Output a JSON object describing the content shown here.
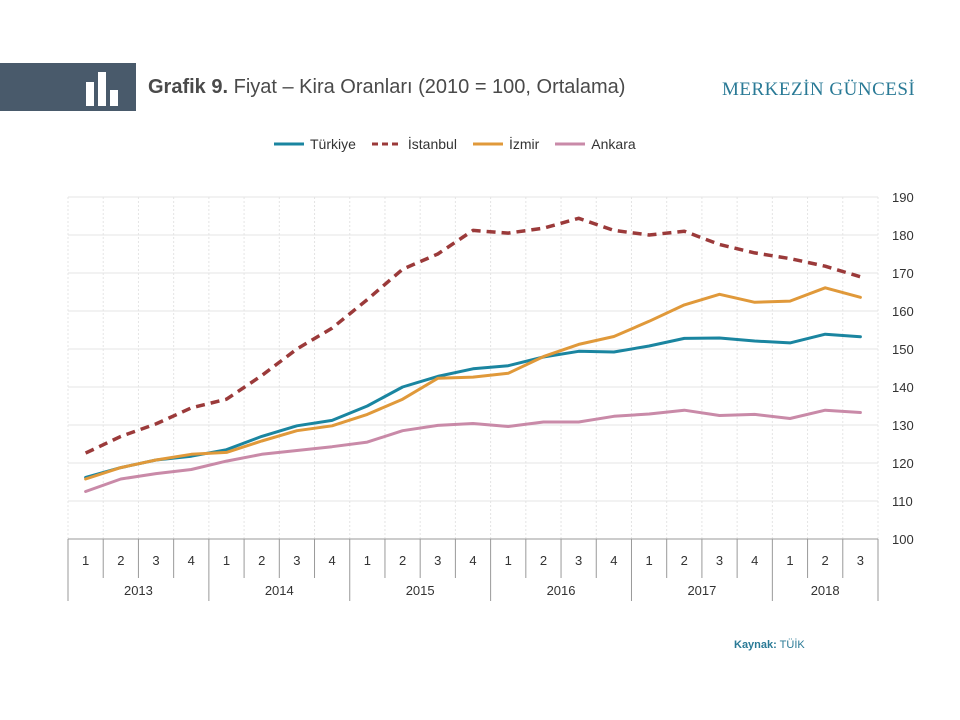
{
  "header": {
    "title_bold": "Grafik 9.",
    "title_rest": " Fiyat – Kira Oranları (2010 = 100, Ortalama)",
    "brand": "MERKEZİN GÜNCESİ"
  },
  "source": {
    "label": "Kaynak:",
    "value": " TÜİK"
  },
  "chart_data": {
    "type": "line",
    "title": "Fiyat – Kira Oranları (2010 = 100, Ortalama)",
    "quarters": [
      "1",
      "2",
      "3",
      "4",
      "1",
      "2",
      "3",
      "4",
      "1",
      "2",
      "3",
      "4",
      "1",
      "2",
      "3",
      "4",
      "1",
      "2",
      "3",
      "4",
      "1",
      "2",
      "3"
    ],
    "years": [
      {
        "label": "2013",
        "count": 4
      },
      {
        "label": "2014",
        "count": 4
      },
      {
        "label": "2015",
        "count": 4
      },
      {
        "label": "2016",
        "count": 4
      },
      {
        "label": "2017",
        "count": 4
      },
      {
        "label": "2018",
        "count": 3
      }
    ],
    "ylim": [
      100,
      190
    ],
    "yticks": [
      100,
      110,
      120,
      130,
      140,
      150,
      160,
      170,
      180,
      190
    ],
    "yaxis_position": "right",
    "legend_position": "top",
    "series": [
      {
        "name": "Türkiye",
        "color": "#1a85a0",
        "dashed": false,
        "values": [
          116.2,
          118.8,
          120.8,
          121.8,
          123.5,
          127.0,
          129.8,
          131.2,
          135.0,
          140.0,
          142.8,
          144.8,
          145.6,
          147.9,
          149.4,
          149.2,
          150.8,
          152.8,
          152.9,
          152.1,
          151.6,
          153.9,
          153.2
        ]
      },
      {
        "name": "İstanbul",
        "color": "#9b3a3a",
        "dashed": true,
        "values": [
          122.6,
          127.0,
          130.3,
          134.5,
          136.8,
          143.0,
          150.0,
          155.5,
          163.0,
          171.0,
          175.0,
          181.2,
          180.5,
          181.8,
          184.4,
          181.2,
          180.0,
          181.0,
          177.5,
          175.3,
          173.8,
          171.8,
          169.0
        ]
      },
      {
        "name": "İzmir",
        "color": "#e0993a",
        "dashed": false,
        "values": [
          115.8,
          118.8,
          120.8,
          122.3,
          122.8,
          125.8,
          128.5,
          129.8,
          132.8,
          136.8,
          142.3,
          142.6,
          143.6,
          148.0,
          151.2,
          153.3,
          157.3,
          161.6,
          164.4,
          162.3,
          162.6,
          166.1,
          163.6
        ]
      },
      {
        "name": "Ankara",
        "color": "#c98aa8",
        "dashed": false,
        "values": [
          112.5,
          115.8,
          117.2,
          118.3,
          120.5,
          122.3,
          123.3,
          124.3,
          125.5,
          128.5,
          129.9,
          130.4,
          129.6,
          130.8,
          130.8,
          132.3,
          132.9,
          133.9,
          132.5,
          132.8,
          131.7,
          133.9,
          133.3
        ]
      }
    ]
  }
}
